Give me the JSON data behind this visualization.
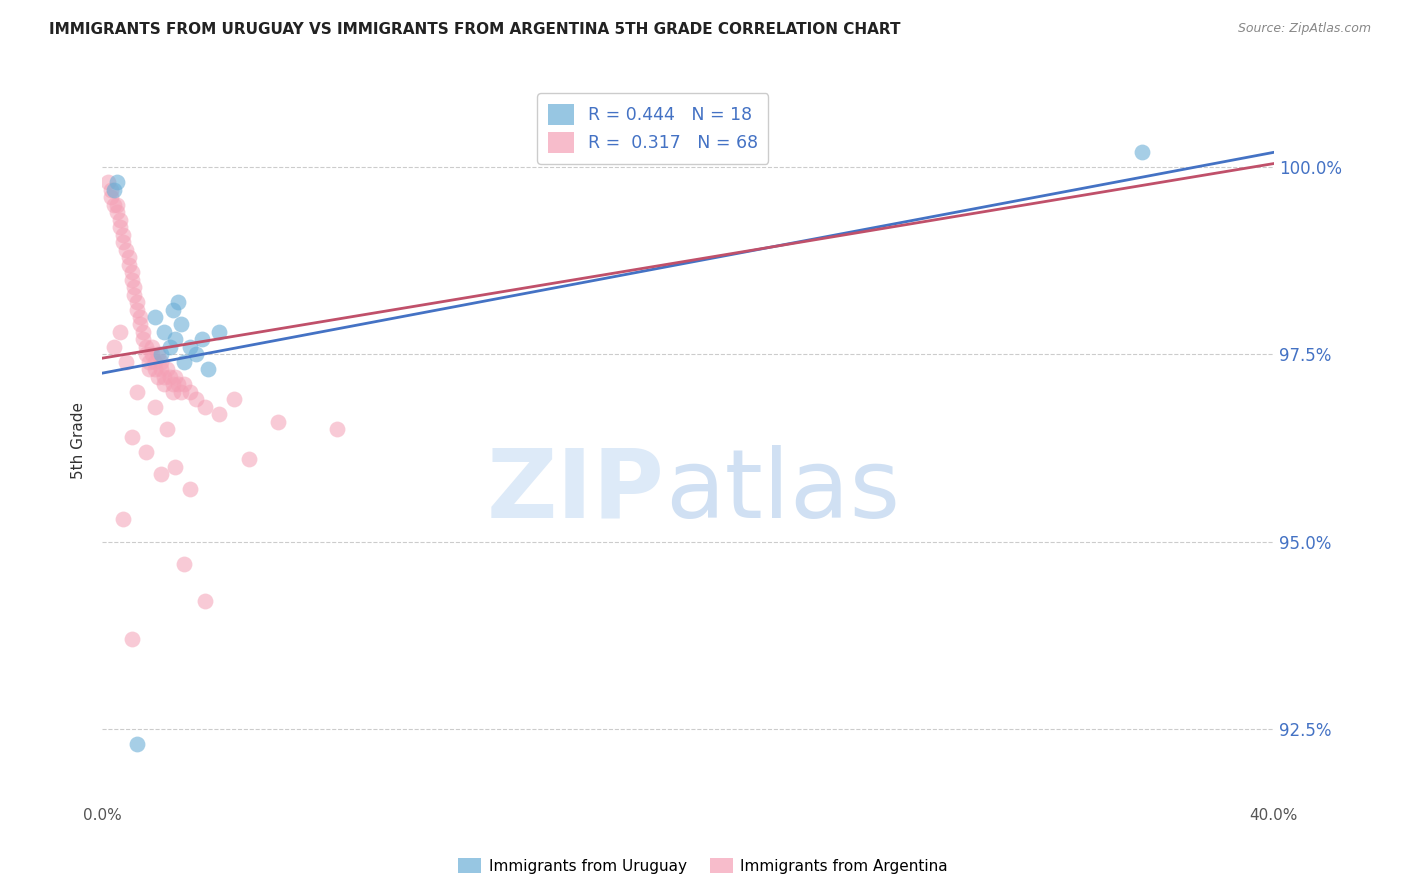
{
  "title": "IMMIGRANTS FROM URUGUAY VS IMMIGRANTS FROM ARGENTINA 5TH GRADE CORRELATION CHART",
  "source": "Source: ZipAtlas.com",
  "ylabel": "5th Grade",
  "ylim": [
    91.5,
    101.2
  ],
  "xlim": [
    0.0,
    40.0
  ],
  "yticks": [
    92.5,
    95.0,
    97.5,
    100.0
  ],
  "ytick_labels": [
    "92.5%",
    "95.0%",
    "97.5%",
    "100.0%"
  ],
  "legend_uruguay": "Immigrants from Uruguay",
  "legend_argentina": "Immigrants from Argentina",
  "r_uruguay": 0.444,
  "n_uruguay": 18,
  "r_argentina": 0.317,
  "n_argentina": 68,
  "color_uruguay": "#6baed6",
  "color_argentina": "#f4a0b5",
  "line_color_uruguay": "#4472c4",
  "line_color_argentina": "#c0506a",
  "background_color": "#ffffff",
  "uruguay_scatter_x": [
    0.4,
    0.5,
    1.8,
    2.0,
    2.1,
    2.3,
    2.4,
    2.5,
    2.6,
    2.7,
    2.8,
    3.0,
    3.2,
    3.4,
    3.6,
    4.0,
    35.5,
    1.2
  ],
  "uruguay_scatter_y": [
    99.7,
    99.8,
    98.0,
    97.5,
    97.8,
    97.6,
    98.1,
    97.7,
    98.2,
    97.9,
    97.4,
    97.6,
    97.5,
    97.7,
    97.3,
    97.8,
    100.2,
    92.3
  ],
  "argentina_scatter_x": [
    0.2,
    0.3,
    0.3,
    0.4,
    0.5,
    0.5,
    0.6,
    0.6,
    0.7,
    0.7,
    0.8,
    0.9,
    0.9,
    1.0,
    1.0,
    1.1,
    1.1,
    1.2,
    1.2,
    1.3,
    1.3,
    1.4,
    1.4,
    1.5,
    1.5,
    1.6,
    1.6,
    1.7,
    1.7,
    1.8,
    1.8,
    1.9,
    1.9,
    2.0,
    2.0,
    2.1,
    2.1,
    2.2,
    2.3,
    2.4,
    2.4,
    2.5,
    2.6,
    2.7,
    2.8,
    3.0,
    3.2,
    3.5,
    4.0,
    4.5,
    6.0,
    8.0,
    1.0,
    1.5,
    2.0,
    2.5,
    3.0,
    0.4,
    0.6,
    0.8,
    1.2,
    1.8,
    2.2,
    2.8,
    3.5,
    5.0,
    1.0,
    0.7
  ],
  "argentina_scatter_y": [
    99.8,
    99.7,
    99.6,
    99.5,
    99.5,
    99.4,
    99.3,
    99.2,
    99.1,
    99.0,
    98.9,
    98.8,
    98.7,
    98.6,
    98.5,
    98.4,
    98.3,
    98.2,
    98.1,
    98.0,
    97.9,
    97.8,
    97.7,
    97.6,
    97.5,
    97.4,
    97.3,
    97.6,
    97.5,
    97.4,
    97.3,
    97.5,
    97.2,
    97.4,
    97.3,
    97.2,
    97.1,
    97.3,
    97.2,
    97.1,
    97.0,
    97.2,
    97.1,
    97.0,
    97.1,
    97.0,
    96.9,
    96.8,
    96.7,
    96.9,
    96.6,
    96.5,
    96.4,
    96.2,
    95.9,
    96.0,
    95.7,
    97.6,
    97.8,
    97.4,
    97.0,
    96.8,
    96.5,
    94.7,
    94.2,
    96.1,
    93.7,
    95.3
  ]
}
